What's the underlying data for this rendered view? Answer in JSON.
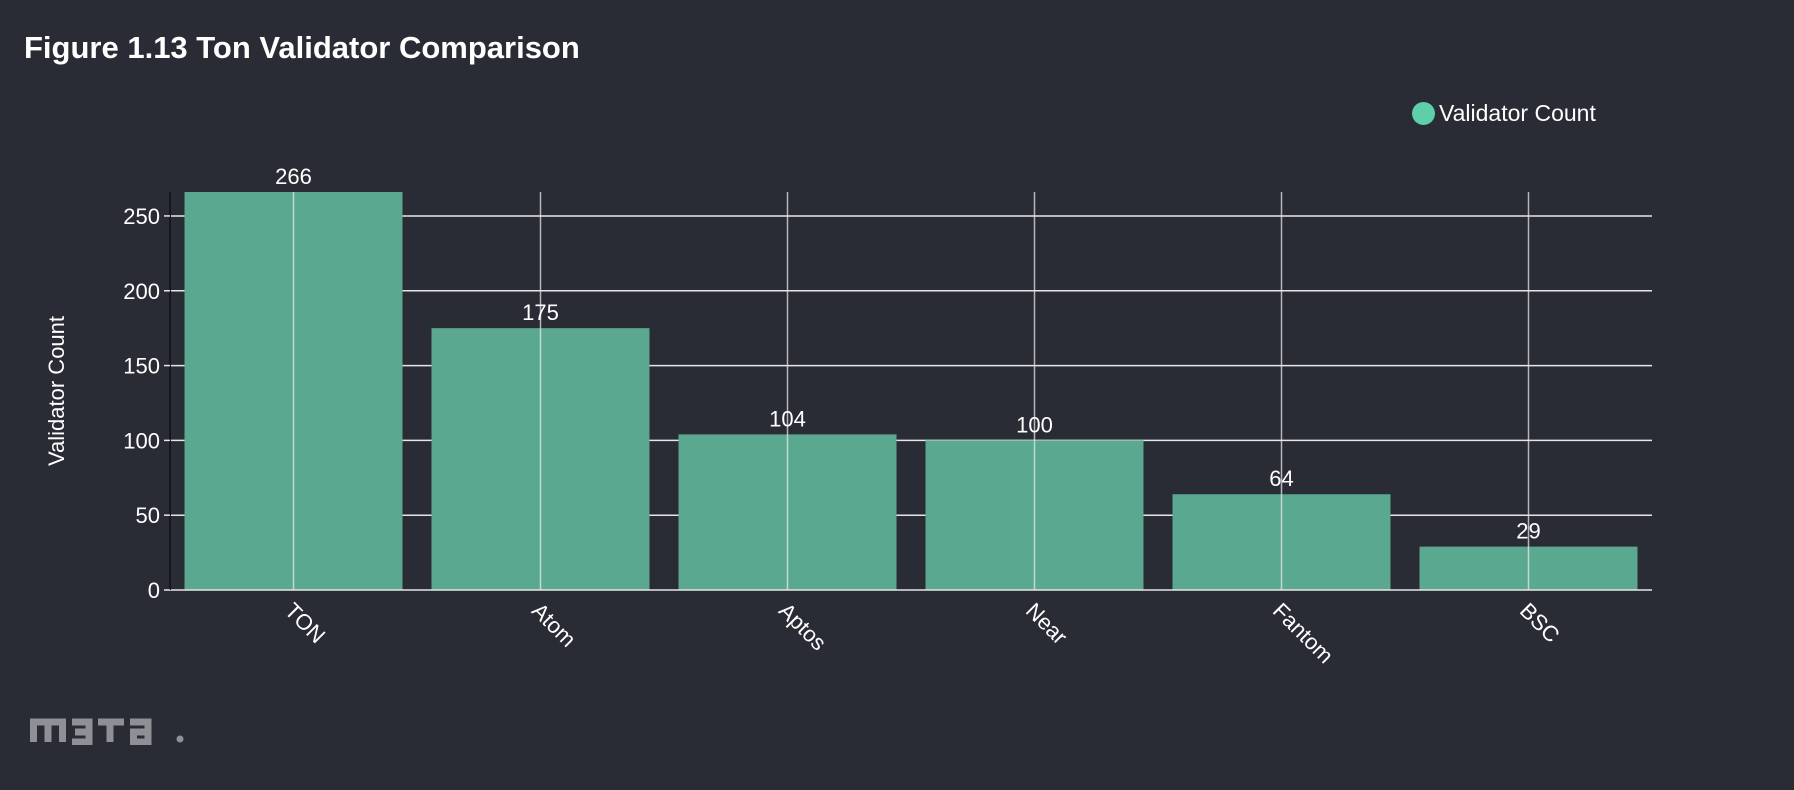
{
  "title": "Figure 1.13 Ton Validator Comparison",
  "colors": {
    "background": "#292c35",
    "bar": "#5ba891",
    "legend_swatch": "#5ecfa8",
    "grid": "#e6e6e6",
    "text": "#ffffff",
    "logo": "#8e9096"
  },
  "logo": {
    "icon": "meta-wordmark-logo",
    "text": "m3ta."
  },
  "chart_data": {
    "type": "bar",
    "title": "Figure 1.13 Ton Validator Comparison",
    "xlabel": "",
    "ylabel": "Validator Count",
    "categories": [
      "TON",
      "Atom",
      "Aptos",
      "Near",
      "Fantom",
      "BSC"
    ],
    "series": [
      {
        "name": "Validator Count",
        "values": [
          266,
          175,
          104,
          100,
          64,
          29
        ]
      }
    ],
    "data_labels": [
      "266",
      "175",
      "104",
      "100",
      "64",
      "29"
    ],
    "ylim": [
      0,
      266
    ],
    "yticks": [
      0,
      50,
      100,
      150,
      200,
      250
    ],
    "ytick_labels": [
      "0",
      "50",
      "100",
      "150",
      "200",
      "250"
    ],
    "grid": true,
    "legend_position": "top-right"
  }
}
